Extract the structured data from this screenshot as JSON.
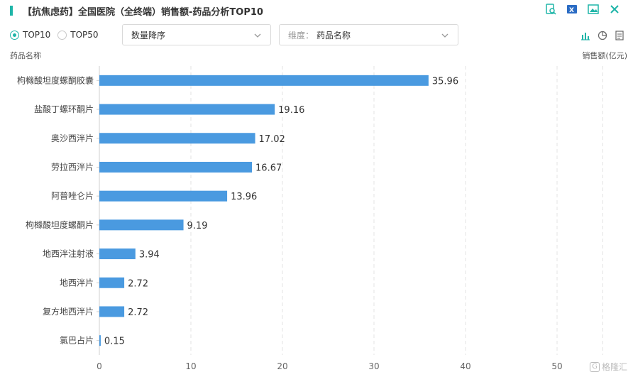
{
  "header": {
    "title": "【抗焦虑药】全国医院（全终端）销售额-药品分析TOP10"
  },
  "controls": {
    "radio_top10": "TOP10",
    "radio_top50": "TOP50",
    "sort_select_value": "数量降序",
    "dimension_prefix": "维度：",
    "dimension_value": "药品名称"
  },
  "colors": {
    "accent": "#1fb5a8",
    "bar": "#4a9ae0",
    "grid": "#e3e3e3"
  },
  "icons": [
    "search-doc-icon",
    "excel-icon",
    "image-icon",
    "close-icon",
    "bar-chart-icon",
    "pie-chart-icon",
    "table-icon"
  ],
  "watermark": {
    "text": "格隆汇"
  },
  "chart_data": {
    "type": "bar",
    "orientation": "horizontal",
    "title": "【抗焦虑药】全国医院（全终端）销售额-药品分析TOP10",
    "xlabel": "销售额(亿元)",
    "ylabel": "药品名称",
    "xlim": [
      0,
      55
    ],
    "xticks": [
      0,
      10,
      20,
      30,
      40,
      50
    ],
    "grid": true,
    "categories": [
      "枸橼酸坦度螺酮胶囊",
      "盐酸丁螺环酮片",
      "奥沙西泮片",
      "劳拉西泮片",
      "阿普唑仑片",
      "枸橼酸坦度螺酮片",
      "地西泮注射液",
      "地西泮片",
      "复方地西泮片",
      "氯巴占片"
    ],
    "values": [
      35.96,
      19.16,
      17.02,
      16.67,
      13.96,
      9.19,
      3.94,
      2.72,
      2.72,
      0.15
    ],
    "labels": [
      "35.96",
      "19.16",
      "17.02",
      "16.67",
      "13.96",
      "9.19",
      "3.94",
      "2.72",
      "2.72",
      "0.15"
    ]
  }
}
